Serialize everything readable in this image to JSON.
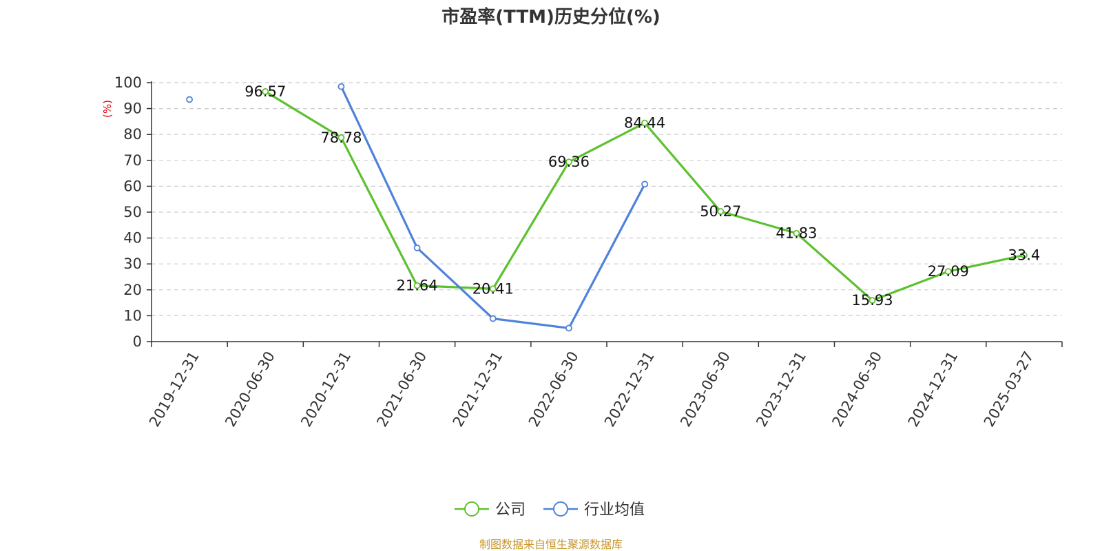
{
  "chart_data": {
    "type": "line",
    "title": "市盈率(TTM)历史分位(%)",
    "ylabel": "(%)",
    "ylim": [
      0,
      100
    ],
    "yticks": [
      0,
      10,
      20,
      30,
      40,
      50,
      60,
      70,
      80,
      90,
      100
    ],
    "categories": [
      "2019-12-31",
      "2020-06-30",
      "2020-12-31",
      "2021-06-30",
      "2021-12-31",
      "2022-06-30",
      "2022-12-31",
      "2023-06-30",
      "2023-12-31",
      "2024-06-30",
      "2024-12-31",
      "2025-03-27"
    ],
    "grid": true,
    "legend_position": "bottom",
    "series": [
      {
        "name": "公司",
        "color": "#5cc12e",
        "values": [
          null,
          96.57,
          78.78,
          21.64,
          20.41,
          69.36,
          84.44,
          50.27,
          41.83,
          15.93,
          27.09,
          33.4
        ],
        "labels": [
          "",
          "96.57",
          "78.78",
          "21.64",
          "20.41",
          "69.36",
          "84.44",
          "50.27",
          "41.83",
          "15.93",
          "27.09",
          "33.4"
        ]
      },
      {
        "name": "行业均值",
        "color": "#4f82d9",
        "values": [
          93.5,
          null,
          98.5,
          36.2,
          8.9,
          5.2,
          60.8,
          null,
          null,
          null,
          null,
          null
        ]
      }
    ]
  },
  "source_text": "制图数据来自恒生聚源数据库",
  "colors": {
    "source_text": "#c8962c",
    "ylabel": "#e00000",
    "grid": "#cccccc",
    "axis": "#333333"
  }
}
